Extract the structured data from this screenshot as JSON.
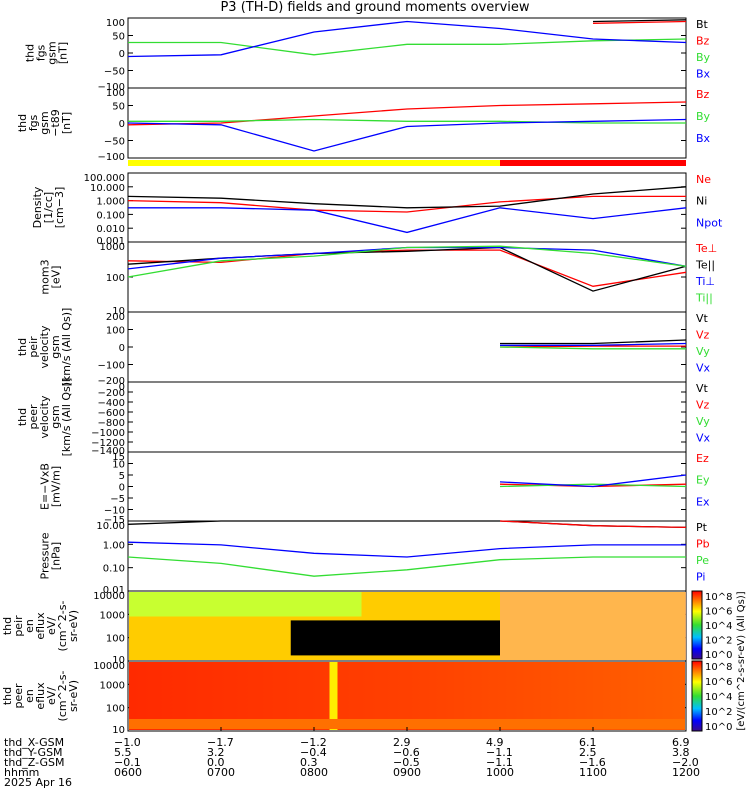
{
  "title": "P3 (TH-D) fields and ground moments overview",
  "colors": {
    "black": "#000000",
    "red": "#ff0000",
    "green": "#33dd33",
    "blue": "#0000ff",
    "yellow": "#ffff00"
  },
  "panels": [
    {
      "id": "fgs-gsm",
      "ylabel": [
        "thd",
        "fgs",
        "gsm",
        "[nT]"
      ],
      "yticks": [
        "100",
        "50",
        "0",
        "−50",
        "−100"
      ],
      "legend": [
        "Bt",
        "Bz",
        "By",
        "Bx"
      ],
      "legend_colors": [
        "#000000",
        "#ff0000",
        "#33dd33",
        "#0000ff"
      ]
    },
    {
      "id": "fgs-gsm-t89",
      "ylabel": [
        "thd",
        "fgs",
        "gsm",
        "−t89",
        "[nT]"
      ],
      "yticks": [
        "100",
        "50",
        "0",
        "−50",
        "−100"
      ],
      "legend": [
        "Bz",
        "By",
        "Bx"
      ],
      "legend_colors": [
        "#ff0000",
        "#33dd33",
        "#0000ff"
      ]
    },
    {
      "id": "density",
      "ylabel": [
        "Density",
        "[1/cc]",
        "[cm−3]"
      ],
      "yticks": [
        "100.000",
        "10.000",
        "1.000",
        "0.100",
        "0.010",
        "0.001"
      ],
      "legend": [
        "Ne",
        "Ni",
        "Npot"
      ],
      "legend_colors": [
        "#ff0000",
        "#000000",
        "#0000ff"
      ]
    },
    {
      "id": "temperature",
      "ylabel": [
        "mom3",
        "[eV]"
      ],
      "yticks": [
        "1000",
        "100",
        "10"
      ],
      "legend": [
        "Te⊥",
        "Te||",
        "Ti⊥",
        "Ti||"
      ],
      "legend_colors": [
        "#ff0000",
        "#000000",
        "#0000ff",
        "#33dd33"
      ]
    },
    {
      "id": "peir-velocity",
      "ylabel": [
        "thd",
        "peir",
        "velocity",
        "gsm",
        "[km/s (All Qs)]"
      ],
      "yticks": [
        "200",
        "100",
        "0",
        "−100",
        "−200"
      ],
      "legend": [
        "Vt",
        "Vz",
        "Vy",
        "Vx"
      ],
      "legend_colors": [
        "#000000",
        "#ff0000",
        "#33dd33",
        "#0000ff"
      ]
    },
    {
      "id": "peer-velocity",
      "ylabel": [
        "thd",
        "peer",
        "velocity",
        "gsm",
        "[km/s (All Qs)]"
      ],
      "yticks": [
        "0",
        "−200",
        "−400",
        "−600",
        "−800",
        "−1000",
        "−1200",
        "−1400"
      ],
      "legend": [
        "Vt",
        "Vz",
        "Vy",
        "Vx"
      ],
      "legend_colors": [
        "#000000",
        "#ff0000",
        "#33dd33",
        "#0000ff"
      ]
    },
    {
      "id": "efield",
      "ylabel": [
        "E=−VxB",
        "[mV/m]"
      ],
      "yticks": [
        "15",
        "10",
        "5",
        "0",
        "−5",
        "−10",
        "−15"
      ],
      "legend": [
        "Ez",
        "Ey",
        "Ex"
      ],
      "legend_colors": [
        "#ff0000",
        "#33dd33",
        "#0000ff"
      ]
    },
    {
      "id": "pressure",
      "ylabel": [
        "Pressure",
        "[nPa]"
      ],
      "yticks": [
        "10.00",
        "1.00",
        "0.10",
        "0.01"
      ],
      "legend": [
        "Pt",
        "Pb",
        "Pe",
        "Pi"
      ],
      "legend_colors": [
        "#000000",
        "#ff0000",
        "#33dd33",
        "#0000ff"
      ]
    },
    {
      "id": "peir-eflux",
      "ylabel": [
        "thd",
        "peir",
        "en",
        "eflux",
        "eV/",
        "(cm^2-s-",
        "sr-eV)"
      ],
      "yticks": [
        "10000",
        "1000",
        "100",
        "10"
      ],
      "legend": [],
      "legend_colors": []
    },
    {
      "id": "peer-eflux",
      "ylabel": [
        "thd",
        "peer",
        "en",
        "eflux",
        "eV/",
        "(cm^2-s-",
        "sr-eV)"
      ],
      "yticks": [
        "10000",
        "1000",
        "100",
        "10"
      ],
      "legend": [],
      "legend_colors": []
    }
  ],
  "colorbar": {
    "label": "[eV/(cm^2-s-sr-eV) (All Qs)]",
    "ticks": [
      "10^8",
      "10^6",
      "10^4",
      "10^2",
      "10^0"
    ]
  },
  "mode_bar": {
    "segments": [
      {
        "from": "0600",
        "to": "1000",
        "color": "#ffff00"
      },
      {
        "from": "1000",
        "to": "1200",
        "color": "#ff0000"
      }
    ]
  },
  "footer": {
    "row_labels": [
      "thd_X-GSM",
      "thd_Y-GSM",
      "thd_Z-GSM",
      "hhmm",
      "2025 Apr 16"
    ],
    "x_gsm": [
      "−1.0",
      "−1.7",
      "−1.2",
      "2.9",
      "4.9",
      "6.1",
      "6.9"
    ],
    "y_gsm": [
      "5.5",
      "3.2",
      "−0.4",
      "−0.6",
      "−1.1",
      "2.5",
      "3.8"
    ],
    "z_gsm": [
      "−0.1",
      "0.0",
      "0.3",
      "−0.5",
      "−1.1",
      "−1.6",
      "−2.0"
    ],
    "hhmm": [
      "0600",
      "0700",
      "0800",
      "0900",
      "1000",
      "1100",
      "1200"
    ]
  },
  "chart_data": {
    "type": "line",
    "title": "P3 (TH-D) fields and ground moments overview",
    "x_axis": "time (hhmm, 2025 Apr 16)",
    "x": [
      "0600",
      "0700",
      "0800",
      "0900",
      "1000",
      "1100",
      "1200"
    ],
    "panels": [
      {
        "name": "thd fgs gsm [nT]",
        "ylim": [
          -100,
          100
        ],
        "series": [
          {
            "name": "Bt",
            "values": [
              null,
              null,
              null,
              null,
              null,
              90,
              95
            ]
          },
          {
            "name": "Bz",
            "values": [
              null,
              null,
              null,
              null,
              null,
              85,
              90
            ]
          },
          {
            "name": "By",
            "values": [
              30,
              30,
              -5,
              25,
              25,
              35,
              40
            ]
          },
          {
            "name": "Bx",
            "values": [
              -10,
              -5,
              60,
              90,
              70,
              40,
              30
            ]
          }
        ]
      },
      {
        "name": "thd fgs gsm-t89 [nT]",
        "ylim": [
          -100,
          100
        ],
        "series": [
          {
            "name": "Bz",
            "values": [
              -5,
              0,
              20,
              40,
              50,
              55,
              60
            ]
          },
          {
            "name": "By",
            "values": [
              5,
              5,
              10,
              5,
              5,
              0,
              0
            ]
          },
          {
            "name": "Bx",
            "values": [
              0,
              -5,
              -80,
              -10,
              0,
              5,
              10
            ]
          }
        ]
      },
      {
        "name": "Density [1/cc]",
        "ylim": [
          0.001,
          100
        ],
        "log": true,
        "series": [
          {
            "name": "Ne",
            "values": [
              1.0,
              0.7,
              0.2,
              0.15,
              0.8,
              2.0,
              2.0
            ]
          },
          {
            "name": "Ni",
            "values": [
              2.0,
              1.5,
              0.6,
              0.3,
              0.4,
              3.0,
              10.0
            ]
          },
          {
            "name": "Npot",
            "values": [
              0.3,
              0.3,
              0.2,
              0.005,
              0.3,
              0.05,
              0.3
            ]
          }
        ]
      },
      {
        "name": "mom3 [eV]",
        "ylim": [
          10,
          4000
        ],
        "log": true,
        "series": [
          {
            "name": "Te⊥",
            "values": [
              800,
              700,
              1500,
              2000,
              2000,
              90,
              300
            ]
          },
          {
            "name": "Te||",
            "values": [
              600,
              1000,
              1500,
              1800,
              2500,
              60,
              500
            ]
          },
          {
            "name": "Ti⊥",
            "values": [
              400,
              1000,
              1500,
              2500,
              2500,
              2000,
              500
            ]
          },
          {
            "name": "Ti||",
            "values": [
              200,
              800,
              1200,
              2500,
              2800,
              1500,
              500
            ]
          }
        ]
      },
      {
        "name": "thd peir velocity gsm [km/s (All Qs)]",
        "ylim": [
          -200,
          200
        ],
        "series": [
          {
            "name": "Vt",
            "values": [
              null,
              null,
              null,
              null,
              20,
              20,
              40
            ]
          },
          {
            "name": "Vz",
            "values": [
              null,
              null,
              null,
              null,
              0,
              5,
              5
            ]
          },
          {
            "name": "Vy",
            "values": [
              null,
              null,
              null,
              null,
              0,
              -10,
              -10
            ]
          },
          {
            "name": "Vx",
            "values": [
              null,
              null,
              null,
              null,
              10,
              10,
              20
            ]
          }
        ]
      },
      {
        "name": "thd peer velocity gsm [km/s (All Qs)]",
        "ylim": [
          -1400,
          0
        ],
        "series": []
      },
      {
        "name": "E=-VxB [mV/m]",
        "ylim": [
          -15,
          15
        ],
        "series": [
          {
            "name": "Ez",
            "values": [
              null,
              null,
              null,
              null,
              1,
              0,
              1
            ]
          },
          {
            "name": "Ey",
            "values": [
              null,
              null,
              null,
              null,
              0,
              1,
              0
            ]
          },
          {
            "name": "Ex",
            "values": [
              null,
              null,
              null,
              null,
              2,
              0,
              5
            ]
          }
        ]
      },
      {
        "name": "Pressure [nPa]",
        "ylim": [
          0.01,
          20
        ],
        "log": true,
        "series": [
          {
            "name": "Pt",
            "values": [
              14,
              20,
              25,
              25,
              20,
              12,
              10
            ]
          },
          {
            "name": "Pb",
            "values": [
              null,
              null,
              null,
              null,
              20,
              12,
              10
            ]
          },
          {
            "name": "Pe",
            "values": [
              0.4,
              0.2,
              0.05,
              0.1,
              0.3,
              0.4,
              0.4
            ]
          },
          {
            "name": "Pi",
            "values": [
              2.0,
              1.5,
              0.6,
              0.4,
              1.0,
              1.5,
              1.5
            ]
          }
        ]
      },
      {
        "name": "thd peir en eflux",
        "type": "heatmap",
        "ylim": [
          5,
          25000
        ],
        "log": true,
        "zlim": [
          1,
          100000000
        ]
      },
      {
        "name": "thd peer en eflux",
        "type": "heatmap",
        "ylim": [
          5,
          25000
        ],
        "log": true,
        "zlim": [
          1,
          100000000
        ]
      }
    ]
  }
}
